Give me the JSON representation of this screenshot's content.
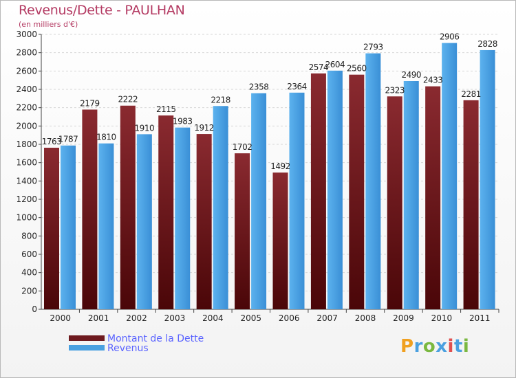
{
  "title": "Revenus/Dette - PAULHAN",
  "subtitle": "(en milliers d'€)",
  "colors": {
    "dette": "#6e1a1f",
    "revenus": "#4aa0e0",
    "title": "#b43b63",
    "legend_text": "#5a63ff"
  },
  "chart_data": {
    "type": "bar",
    "title": "Revenus/Dette - PAULHAN",
    "subtitle": "(en milliers d'€)",
    "categories": [
      "2000",
      "2001",
      "2002",
      "2003",
      "2004",
      "2005",
      "2006",
      "2007",
      "2008",
      "2009",
      "2010",
      "2011"
    ],
    "series": [
      {
        "name": "Montant de la Dette",
        "values": [
          1763,
          2179,
          2222,
          2115,
          1912,
          1702,
          1492,
          2574,
          2560,
          2323,
          2433,
          2281
        ]
      },
      {
        "name": "Revenus",
        "values": [
          1787,
          1810,
          1910,
          1983,
          2218,
          2358,
          2364,
          2604,
          2793,
          2490,
          2906,
          2828
        ]
      }
    ],
    "ylim": [
      0,
      3000
    ],
    "yticks": [
      0,
      200,
      400,
      600,
      800,
      1000,
      1200,
      1400,
      1600,
      1800,
      2000,
      2200,
      2400,
      2600,
      2800,
      3000
    ],
    "grid": true,
    "legend_position": "bottom-left"
  },
  "legend": {
    "items": [
      {
        "label": "Montant de la Dette"
      },
      {
        "label": "Revenus"
      }
    ]
  },
  "logo": {
    "text": "Proxiti"
  }
}
